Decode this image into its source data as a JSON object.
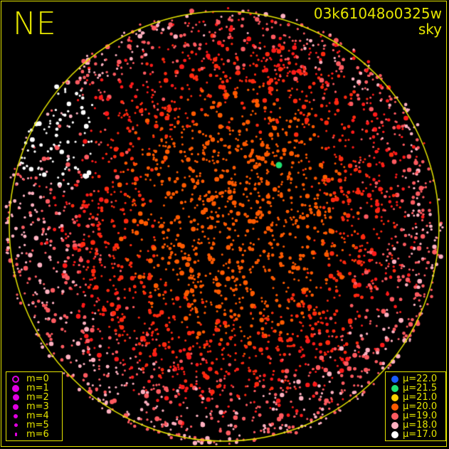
{
  "direction_label": "NE",
  "title": {
    "id": "03k61048o0325w",
    "subtitle": "sky"
  },
  "colors": {
    "frame": "#e6e600",
    "background": "#000000"
  },
  "magnitude_legend": [
    {
      "label": "m=0",
      "style": "ring"
    },
    {
      "label": "m=1"
    },
    {
      "label": "m=2"
    },
    {
      "label": "m=3"
    },
    {
      "label": "m=4"
    },
    {
      "label": "m=5"
    },
    {
      "label": "m=6"
    }
  ],
  "magnitude_symbol_color": "#e000e0",
  "brightness_legend": [
    {
      "label": "μ=22.0",
      "color": "#1a5cff"
    },
    {
      "label": "μ=21.5",
      "color": "#20e070"
    },
    {
      "label": "μ=21.0",
      "color": "#ffd000"
    },
    {
      "label": "μ=20.0",
      "color": "#ff5a00"
    },
    {
      "label": "μ=19.0",
      "color": "#ff5a60"
    },
    {
      "label": "μ=18.0",
      "color": "#ffb0c0"
    },
    {
      "label": "μ=17.0",
      "color": "#ffffff"
    }
  ]
}
